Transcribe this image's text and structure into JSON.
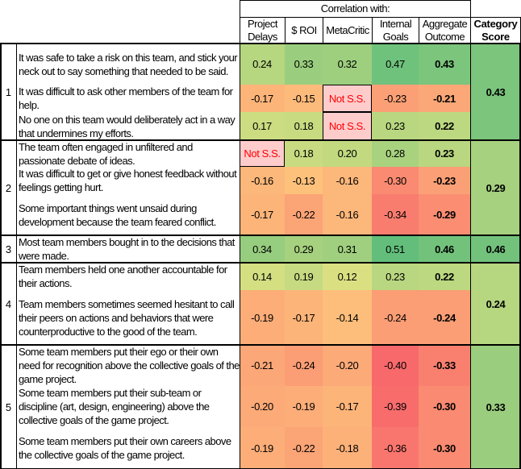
{
  "header": {
    "group_label": "Correlation with:",
    "columns": [
      "Project Delays",
      "$ ROI",
      "MetaCritic",
      "Internal Goals",
      "Aggregate Outcome"
    ],
    "category_score_label": "Category Score"
  },
  "not_significant_label": "Not S.S.",
  "colors": {
    "scale_low": "#F8696B",
    "scale_mid": "#FFEB84",
    "scale_high": "#63BE7B",
    "not_ss_bg": "#FFCCCC",
    "not_ss_text": "#FF0000"
  },
  "categories": [
    {
      "number": "1",
      "score": "0.43",
      "items": [
        {
          "text": "It was safe to take a risk on this team, and stick your neck out to say something that needed to be said.",
          "values": [
            "0.24",
            "0.33",
            "0.32",
            "0.47",
            "0.43"
          ]
        },
        {
          "text": "It was difficult to ask other members of the team for help.",
          "values": [
            "-0.17",
            "-0.15",
            "Not S.S.",
            "-0.23",
            "-0.21"
          ]
        },
        {
          "text": "No one on this team would deliberately act in a way that undermines my efforts.",
          "values": [
            "0.17",
            "0.18",
            "Not S.S.",
            "0.23",
            "0.22"
          ]
        }
      ]
    },
    {
      "number": "2",
      "score": "0.29",
      "items": [
        {
          "text": "The team often engaged in unfiltered and passionate debate of ideas.",
          "values": [
            "Not S.S.",
            "0.18",
            "0.20",
            "0.28",
            "0.23"
          ]
        },
        {
          "text": "It was difficult to get or give honest feedback without feelings getting hurt.",
          "values": [
            "-0.16",
            "-0.13",
            "-0.16",
            "-0.30",
            "-0.23"
          ]
        },
        {
          "text": "Some important things went unsaid during development because the team feared conflict.",
          "values": [
            "-0.17",
            "-0.22",
            "-0.16",
            "-0.34",
            "-0.29"
          ]
        }
      ]
    },
    {
      "number": "3",
      "score": "0.46",
      "items": [
        {
          "text": "Most team members bought in to the decisions that were made.",
          "values": [
            "0.34",
            "0.29",
            "0.31",
            "0.51",
            "0.46"
          ]
        }
      ]
    },
    {
      "number": "4",
      "score": "0.24",
      "items": [
        {
          "text": "Team members held one another accountable for their actions.",
          "values": [
            "0.14",
            "0.19",
            "0.12",
            "0.23",
            "0.22"
          ]
        },
        {
          "text": "Team members sometimes seemed hesitant to call their peers on actions and behaviors that were counterproductive to the good of the team.",
          "values": [
            "-0.19",
            "-0.17",
            "-0.14",
            "-0.24",
            "-0.24"
          ]
        }
      ]
    },
    {
      "number": "5",
      "score": "0.33",
      "items": [
        {
          "text": "Some team members put their ego or their own need for recognition above the collective goals of the game project.",
          "values": [
            "-0.21",
            "-0.24",
            "-0.20",
            "-0.40",
            "-0.33"
          ]
        },
        {
          "text": "Some team members put their sub-team or discipline (art, design, engineering) above the collective goals of the game project.",
          "values": [
            "-0.20",
            "-0.19",
            "-0.17",
            "-0.39",
            "-0.30"
          ]
        },
        {
          "text": "Some team members put their own careers above the collective goals of the game project.",
          "values": [
            "-0.19",
            "-0.22",
            "-0.18",
            "-0.36",
            "-0.30"
          ]
        }
      ]
    }
  ]
}
